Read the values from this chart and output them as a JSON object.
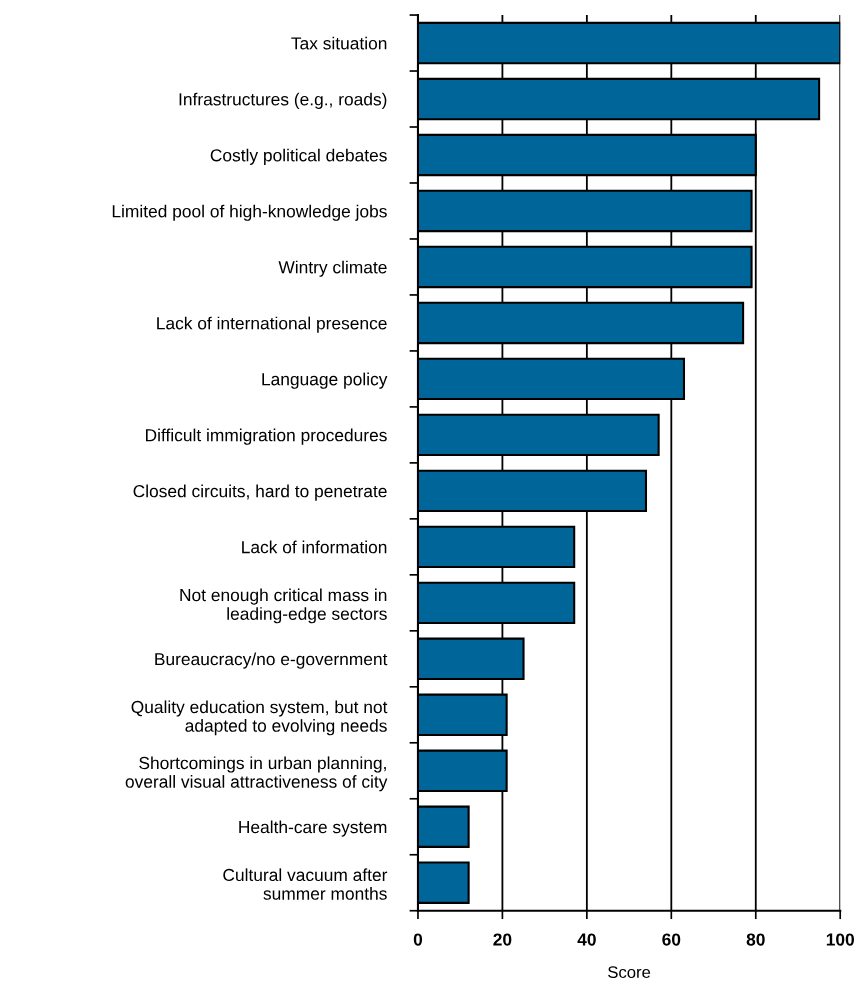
{
  "chart_data": {
    "type": "bar",
    "orientation": "horizontal",
    "xlabel": "Score",
    "categories": [
      "Tax situation",
      "Infrastructures (e.g., roads)",
      "Costly political debates",
      "Limited pool of high-knowledge jobs",
      "Wintry climate",
      "Lack of international presence",
      "Language policy",
      "Difficult immigration procedures",
      "Closed circuits, hard to penetrate",
      "Lack of information",
      "Not enough critical mass in\nleading-edge sectors",
      "Bureaucracy/no e-government",
      "Quality education system, but not\nadapted to evolving needs",
      "Shortcomings in urban planning,\noverall visual attractiveness of city",
      "Health-care system",
      "Cultural vacuum after\nsummer months"
    ],
    "values": [
      100,
      95,
      80,
      79,
      79,
      77,
      63,
      57,
      54,
      37,
      37,
      25,
      21,
      21,
      12,
      12
    ],
    "color": "#006699",
    "xlim": [
      0,
      100
    ],
    "xticks": [
      0,
      20,
      40,
      60,
      80,
      100
    ],
    "grid": "x"
  }
}
